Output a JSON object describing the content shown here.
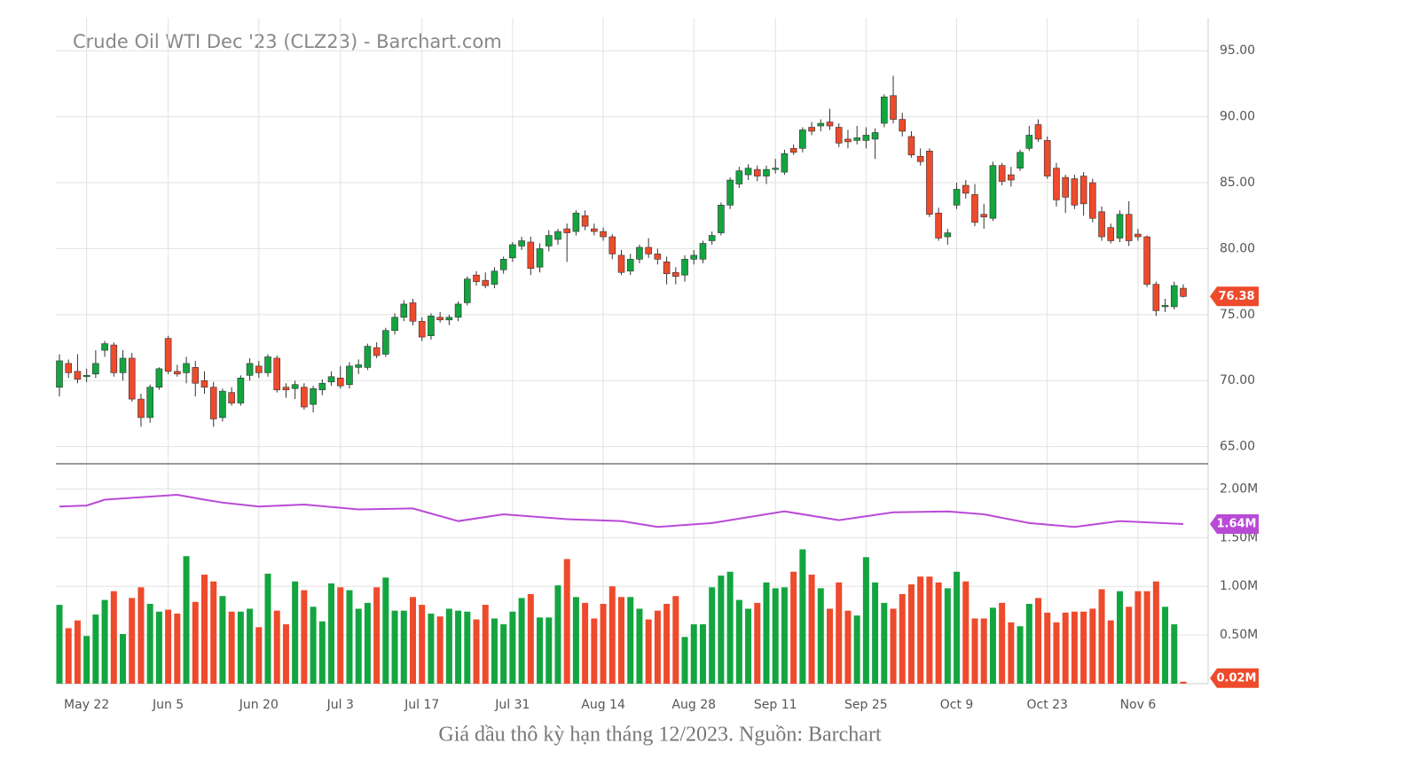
{
  "chart_data": {
    "type": "candlestick",
    "title": "Crude Oil WTI Dec '23 (CLZ23) - Barchart.com",
    "caption": "Giá dầu thô kỳ hạn tháng 12/2023. Nguồn: Barchart",
    "up_color": "#13a540",
    "down_color": "#ee4a2c",
    "ma_color": "#b94ad6",
    "grid": true,
    "ylim": [
      63.7,
      97.5
    ],
    "yticks": [
      {
        "value": 65,
        "label": "65.00"
      },
      {
        "value": 70,
        "label": "70.00"
      },
      {
        "value": 75,
        "label": "75.00"
      },
      {
        "value": 80,
        "label": "80.00"
      },
      {
        "value": 85,
        "label": "85.00"
      },
      {
        "value": 90,
        "label": "90.00"
      },
      {
        "value": 95,
        "label": "95.00"
      }
    ],
    "xlim": [
      0,
      124
    ],
    "xticks": [
      {
        "value": 3,
        "label": "May 22"
      },
      {
        "value": 12,
        "label": "Jun 5"
      },
      {
        "value": 22,
        "label": "Jun 20"
      },
      {
        "value": 31,
        "label": "Jul 3"
      },
      {
        "value": 40,
        "label": "Jul 17"
      },
      {
        "value": 50,
        "label": "Jul 31"
      },
      {
        "value": 60,
        "label": "Aug 14"
      },
      {
        "value": 70,
        "label": "Aug 28"
      },
      {
        "value": 79,
        "label": "Sep 11"
      },
      {
        "value": 89,
        "label": "Sep 25"
      },
      {
        "value": 99,
        "label": "Oct 9"
      },
      {
        "value": 109,
        "label": "Oct 23"
      },
      {
        "value": 119,
        "label": "Nov 6"
      }
    ],
    "ohlc": [
      [
        69.5,
        72.0,
        68.8,
        71.5
      ],
      [
        71.3,
        71.6,
        70.2,
        70.6
      ],
      [
        70.7,
        72.0,
        69.8,
        70.1
      ],
      [
        70.3,
        70.9,
        69.9,
        70.4
      ],
      [
        70.5,
        72.3,
        70.2,
        71.3
      ],
      [
        72.3,
        73.0,
        71.8,
        72.8
      ],
      [
        72.7,
        72.9,
        70.3,
        70.6
      ],
      [
        70.6,
        72.3,
        70.0,
        71.7
      ],
      [
        71.7,
        72.1,
        68.4,
        68.6
      ],
      [
        68.6,
        69.0,
        66.5,
        67.2
      ],
      [
        67.2,
        69.7,
        66.8,
        69.5
      ],
      [
        69.5,
        71.0,
        69.3,
        70.9
      ],
      [
        73.2,
        73.4,
        70.5,
        70.7
      ],
      [
        70.7,
        71.2,
        70.3,
        70.5
      ],
      [
        70.6,
        71.8,
        69.8,
        71.3
      ],
      [
        71.0,
        71.5,
        68.8,
        69.8
      ],
      [
        70.0,
        70.7,
        69.0,
        69.5
      ],
      [
        69.5,
        69.9,
        66.5,
        67.1
      ],
      [
        67.2,
        69.4,
        66.9,
        69.2
      ],
      [
        69.1,
        69.5,
        68.1,
        68.3
      ],
      [
        68.3,
        70.4,
        68.1,
        70.2
      ],
      [
        70.4,
        71.7,
        70.0,
        71.3
      ],
      [
        71.1,
        71.5,
        70.2,
        70.6
      ],
      [
        70.6,
        72.0,
        70.3,
        71.8
      ],
      [
        71.7,
        71.9,
        69.1,
        69.3
      ],
      [
        69.5,
        69.8,
        68.7,
        69.3
      ],
      [
        69.4,
        70.0,
        68.6,
        69.7
      ],
      [
        69.5,
        69.8,
        67.8,
        68.0
      ],
      [
        68.2,
        69.6,
        67.6,
        69.4
      ],
      [
        69.3,
        70.1,
        68.9,
        69.8
      ],
      [
        69.9,
        70.7,
        69.6,
        70.3
      ],
      [
        70.2,
        71.1,
        69.4,
        69.6
      ],
      [
        69.7,
        71.4,
        69.4,
        71.1
      ],
      [
        71.0,
        71.6,
        70.5,
        71.2
      ],
      [
        71.0,
        72.8,
        70.8,
        72.6
      ],
      [
        72.5,
        72.9,
        71.7,
        71.9
      ],
      [
        72.0,
        74.0,
        71.8,
        73.8
      ],
      [
        73.8,
        75.1,
        73.5,
        74.8
      ],
      [
        74.8,
        76.1,
        74.5,
        75.8
      ],
      [
        75.9,
        76.2,
        74.2,
        74.5
      ],
      [
        74.5,
        74.8,
        73.0,
        73.3
      ],
      [
        73.4,
        75.1,
        73.1,
        74.9
      ],
      [
        74.8,
        75.2,
        74.4,
        74.6
      ],
      [
        74.6,
        75.0,
        74.2,
        74.8
      ],
      [
        74.8,
        76.0,
        74.5,
        75.8
      ],
      [
        75.9,
        77.9,
        75.7,
        77.7
      ],
      [
        78.0,
        78.3,
        77.2,
        77.5
      ],
      [
        77.6,
        78.2,
        77.0,
        77.2
      ],
      [
        77.3,
        78.6,
        77.0,
        78.3
      ],
      [
        78.4,
        79.4,
        78.1,
        79.2
      ],
      [
        79.3,
        80.5,
        79.0,
        80.3
      ],
      [
        80.2,
        80.9,
        79.9,
        80.6
      ],
      [
        80.5,
        80.9,
        78.0,
        78.5
      ],
      [
        78.6,
        80.4,
        78.2,
        80.0
      ],
      [
        80.2,
        81.4,
        79.8,
        81.0
      ],
      [
        80.7,
        81.5,
        80.3,
        81.3
      ],
      [
        81.5,
        81.9,
        79.0,
        81.2
      ],
      [
        81.3,
        82.9,
        81.0,
        82.7
      ],
      [
        82.5,
        82.9,
        81.4,
        81.7
      ],
      [
        81.5,
        81.9,
        81.0,
        81.3
      ],
      [
        81.3,
        81.6,
        80.6,
        80.9
      ],
      [
        80.9,
        81.1,
        79.2,
        79.6
      ],
      [
        79.5,
        79.9,
        78.0,
        78.2
      ],
      [
        78.3,
        79.6,
        78.0,
        79.2
      ],
      [
        79.2,
        80.3,
        78.9,
        80.1
      ],
      [
        80.1,
        80.8,
        79.3,
        79.6
      ],
      [
        79.6,
        80.0,
        78.8,
        79.2
      ],
      [
        79.0,
        79.4,
        77.3,
        78.1
      ],
      [
        78.2,
        78.6,
        77.3,
        77.9
      ],
      [
        78.0,
        79.5,
        77.5,
        79.2
      ],
      [
        79.2,
        79.9,
        78.8,
        79.5
      ],
      [
        79.2,
        80.6,
        78.9,
        80.4
      ],
      [
        80.6,
        81.3,
        80.3,
        81.0
      ],
      [
        81.2,
        83.5,
        81.0,
        83.3
      ],
      [
        83.3,
        85.4,
        83.0,
        85.2
      ],
      [
        84.9,
        86.2,
        84.6,
        85.9
      ],
      [
        85.6,
        86.4,
        85.2,
        86.1
      ],
      [
        86.0,
        86.3,
        85.1,
        85.5
      ],
      [
        85.5,
        86.3,
        84.9,
        86.0
      ],
      [
        86.0,
        86.8,
        85.7,
        86.1
      ],
      [
        85.8,
        87.5,
        85.6,
        87.2
      ],
      [
        87.6,
        87.9,
        87.1,
        87.3
      ],
      [
        87.6,
        89.2,
        87.3,
        89.0
      ],
      [
        89.2,
        89.6,
        88.6,
        88.9
      ],
      [
        89.3,
        89.8,
        88.9,
        89.5
      ],
      [
        89.6,
        90.6,
        89.0,
        89.3
      ],
      [
        89.2,
        89.5,
        87.7,
        88.0
      ],
      [
        88.3,
        89.0,
        87.6,
        88.1
      ],
      [
        88.2,
        89.3,
        87.9,
        88.4
      ],
      [
        88.2,
        89.2,
        87.6,
        88.6
      ],
      [
        88.3,
        89.1,
        86.8,
        88.8
      ],
      [
        89.5,
        91.7,
        89.2,
        91.5
      ],
      [
        91.6,
        93.1,
        89.5,
        89.8
      ],
      [
        89.8,
        90.3,
        88.5,
        88.9
      ],
      [
        88.5,
        88.9,
        86.9,
        87.1
      ],
      [
        87.0,
        87.6,
        86.3,
        86.6
      ],
      [
        87.4,
        87.6,
        82.4,
        82.6
      ],
      [
        82.7,
        83.1,
        80.6,
        80.8
      ],
      [
        80.9,
        81.5,
        80.3,
        81.2
      ],
      [
        83.3,
        85.0,
        83.0,
        84.5
      ],
      [
        84.8,
        85.2,
        83.8,
        84.2
      ],
      [
        84.1,
        84.9,
        81.7,
        82.0
      ],
      [
        82.6,
        83.4,
        81.5,
        82.4
      ],
      [
        82.3,
        86.6,
        82.1,
        86.3
      ],
      [
        86.3,
        86.5,
        84.8,
        85.1
      ],
      [
        85.6,
        86.2,
        84.7,
        85.2
      ],
      [
        86.1,
        87.5,
        85.9,
        87.3
      ],
      [
        87.6,
        89.3,
        87.4,
        88.6
      ],
      [
        89.4,
        89.8,
        88.1,
        88.3
      ],
      [
        88.2,
        88.5,
        85.3,
        85.5
      ],
      [
        86.1,
        86.5,
        83.2,
        83.7
      ],
      [
        85.4,
        85.6,
        82.7,
        83.9
      ],
      [
        85.3,
        85.6,
        83.0,
        83.3
      ],
      [
        85.5,
        85.8,
        82.5,
        83.4
      ],
      [
        85.0,
        85.3,
        82.0,
        82.3
      ],
      [
        82.8,
        83.2,
        80.6,
        80.9
      ],
      [
        81.6,
        81.9,
        80.4,
        80.6
      ],
      [
        80.8,
        82.9,
        80.5,
        82.6
      ],
      [
        82.6,
        83.6,
        80.2,
        80.6
      ],
      [
        81.1,
        81.5,
        80.6,
        80.9
      ],
      [
        80.9,
        81.0,
        77.1,
        77.3
      ],
      [
        77.3,
        77.5,
        74.9,
        75.3
      ],
      [
        75.6,
        76.2,
        75.2,
        75.7
      ],
      [
        75.6,
        77.5,
        75.4,
        77.2
      ],
      [
        77.0,
        77.3,
        76.3,
        76.38
      ]
    ],
    "volume_ylim": [
      0,
      2.25
    ],
    "volume_yticks": [
      {
        "value": 0.5,
        "label": "0.50M"
      },
      {
        "value": 1.0,
        "label": "1.00M"
      },
      {
        "value": 1.5,
        "label": "1.50M"
      },
      {
        "value": 2.0,
        "label": "2.00M"
      }
    ],
    "volumes": [
      0.81,
      0.57,
      0.65,
      0.49,
      0.71,
      0.86,
      0.95,
      0.51,
      0.88,
      0.99,
      0.82,
      0.74,
      0.76,
      0.72,
      1.31,
      0.84,
      1.12,
      1.05,
      0.9,
      0.74,
      0.74,
      0.77,
      0.58,
      1.13,
      0.75,
      0.61,
      1.05,
      0.96,
      0.79,
      0.64,
      1.03,
      0.99,
      0.96,
      0.77,
      0.83,
      0.99,
      1.09,
      0.75,
      0.75,
      0.89,
      0.81,
      0.72,
      0.69,
      0.77,
      0.75,
      0.74,
      0.66,
      0.81,
      0.67,
      0.61,
      0.74,
      0.88,
      0.92,
      0.68,
      0.68,
      1.01,
      1.28,
      0.89,
      0.83,
      0.67,
      0.82,
      1.0,
      0.89,
      0.89,
      0.77,
      0.66,
      0.75,
      0.82,
      0.9,
      0.48,
      0.61,
      0.61,
      0.99,
      1.11,
      1.15,
      0.86,
      0.77,
      0.83,
      1.04,
      0.98,
      0.99,
      1.15,
      1.38,
      1.12,
      0.98,
      0.77,
      1.04,
      0.75,
      0.7,
      1.3,
      1.04,
      0.83,
      0.77,
      0.92,
      1.02,
      1.1,
      1.1,
      1.04,
      0.98,
      1.15,
      1.05,
      0.67,
      0.67,
      0.78,
      0.83,
      0.63,
      0.59,
      0.82,
      0.88,
      0.73,
      0.63,
      0.73,
      0.74,
      0.74,
      0.77,
      0.97,
      0.65,
      0.95,
      0.79,
      0.95,
      0.95,
      1.05,
      0.79,
      0.61,
      0.02
    ],
    "volume_ma": {
      "x": [
        0,
        3,
        5,
        13,
        16,
        18,
        22,
        27,
        33,
        39,
        44,
        49,
        56,
        62,
        66,
        72,
        80,
        86,
        92,
        98,
        102,
        107,
        112,
        117,
        124
      ],
      "values": [
        1.82,
        1.83,
        1.89,
        1.94,
        1.89,
        1.86,
        1.82,
        1.84,
        1.79,
        1.8,
        1.67,
        1.74,
        1.69,
        1.67,
        1.61,
        1.65,
        1.77,
        1.68,
        1.76,
        1.77,
        1.74,
        1.65,
        1.61,
        1.67,
        1.64
      ]
    },
    "ma_label": "1.64M",
    "last_volume_label": "0.02M"
  }
}
